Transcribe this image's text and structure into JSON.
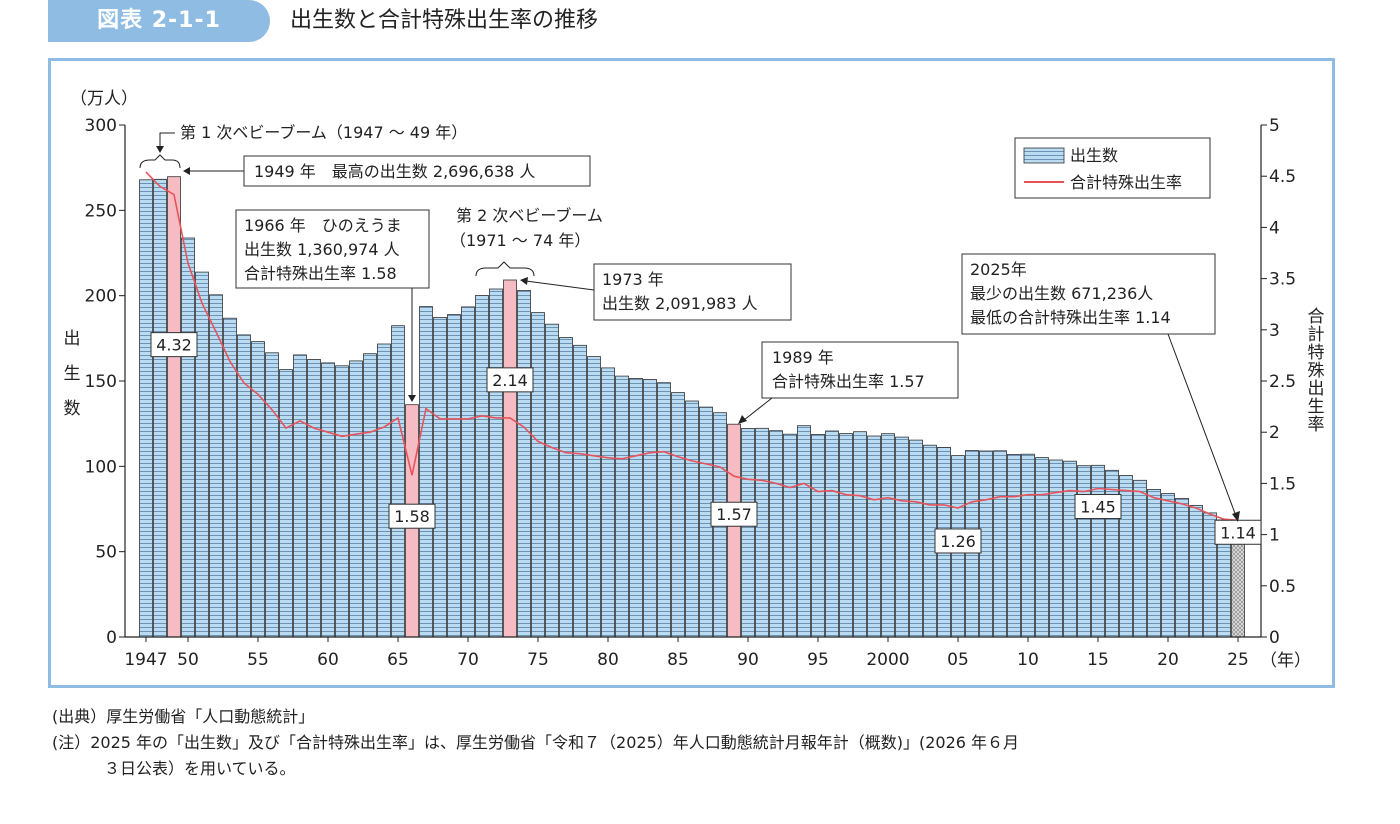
{
  "header": {
    "badge": "図表 2-1-1",
    "title": "出生数と合計特殊出生率の推移"
  },
  "notes": {
    "source": "(出典）厚生労働省「人口動態統計」",
    "note_line1": "(注）2025 年の「出生数」及び「合計特殊出生率」は、厚生労働省「令和７（2025）年人口動態統計月報年計（概数)」(2026 年６月",
    "note_line2": "３日公表）を用いている。"
  },
  "colors": {
    "bar_fill": "#b9dcf2",
    "bar_stripe": "#5a7fa3",
    "highlight_fill": "#f6bcc3",
    "line": "#e8535b",
    "frame": "#8fbce3",
    "estimate_fill": "#c8c8c8"
  },
  "chart_data": {
    "type": "bar",
    "left_axis": {
      "unit": "（万人）",
      "label_chars": [
        "出",
        "生",
        "数"
      ],
      "ylim": [
        0,
        300
      ],
      "ticks": [
        0,
        50,
        100,
        150,
        200,
        250,
        300
      ]
    },
    "right_axis": {
      "label_chars": [
        "合",
        "計",
        "特",
        "殊",
        "出",
        "生",
        "率"
      ],
      "ylim": [
        0,
        5
      ],
      "ticks": [
        "0",
        "0.5",
        "1",
        "1.5",
        "2",
        "2.5",
        "3",
        "3.5",
        "4",
        "4.5",
        "5"
      ]
    },
    "x_axis": {
      "unit": "（年）",
      "tick_labels": [
        {
          "year": 1947,
          "label": "1947"
        },
        {
          "year": 1950,
          "label": "50"
        },
        {
          "year": 1955,
          "label": "55"
        },
        {
          "year": 1960,
          "label": "60"
        },
        {
          "year": 1965,
          "label": "65"
        },
        {
          "year": 1970,
          "label": "70"
        },
        {
          "year": 1975,
          "label": "75"
        },
        {
          "year": 1980,
          "label": "80"
        },
        {
          "year": 1985,
          "label": "85"
        },
        {
          "year": 1990,
          "label": "90"
        },
        {
          "year": 1995,
          "label": "95"
        },
        {
          "year": 2000,
          "label": "2000"
        },
        {
          "year": 2005,
          "label": "05"
        },
        {
          "year": 2010,
          "label": "10"
        },
        {
          "year": 2015,
          "label": "15"
        },
        {
          "year": 2020,
          "label": "20"
        },
        {
          "year": 2025,
          "label": "25"
        }
      ]
    },
    "legend": {
      "position": "top-right",
      "bar_label": "出生数",
      "line_label": "合計特殊出生率"
    },
    "years": [
      1947,
      1948,
      1949,
      1950,
      1951,
      1952,
      1953,
      1954,
      1955,
      1956,
      1957,
      1958,
      1959,
      1960,
      1961,
      1962,
      1963,
      1964,
      1965,
      1966,
      1967,
      1968,
      1969,
      1970,
      1971,
      1972,
      1973,
      1974,
      1975,
      1976,
      1977,
      1978,
      1979,
      1980,
      1981,
      1982,
      1983,
      1984,
      1985,
      1986,
      1987,
      1988,
      1989,
      1990,
      1991,
      1992,
      1993,
      1994,
      1995,
      1996,
      1997,
      1998,
      1999,
      2000,
      2001,
      2002,
      2003,
      2004,
      2005,
      2006,
      2007,
      2008,
      2009,
      2010,
      2011,
      2012,
      2013,
      2014,
      2015,
      2016,
      2017,
      2018,
      2019,
      2020,
      2021,
      2022,
      2023,
      2024,
      2025
    ],
    "series": [
      {
        "name": "出生数",
        "unit": "万人",
        "values": [
          267.9,
          268.2,
          269.7,
          233.8,
          213.8,
          200.5,
          186.8,
          177.0,
          173.1,
          166.5,
          156.7,
          165.3,
          162.6,
          160.6,
          158.9,
          161.8,
          166.0,
          171.7,
          182.4,
          136.1,
          193.6,
          187.2,
          188.9,
          193.4,
          200.1,
          203.9,
          209.2,
          203.0,
          190.1,
          183.3,
          175.5,
          170.9,
          164.3,
          157.7,
          152.9,
          151.5,
          150.9,
          149.0,
          143.2,
          138.3,
          134.7,
          131.4,
          124.7,
          122.2,
          122.3,
          120.9,
          118.8,
          123.8,
          118.7,
          120.7,
          119.2,
          120.3,
          117.8,
          119.1,
          117.1,
          115.4,
          112.4,
          111.1,
          106.3,
          109.3,
          109.0,
          109.1,
          107.0,
          107.1,
          105.1,
          103.7,
          103.0,
          100.4,
          100.6,
          97.7,
          94.6,
          91.8,
          86.5,
          84.1,
          81.2,
          77.1,
          72.7,
          68.6,
          67.1
        ]
      },
      {
        "name": "合計特殊出生率",
        "values": [
          4.54,
          4.4,
          4.32,
          3.65,
          3.26,
          2.98,
          2.69,
          2.48,
          2.37,
          2.22,
          2.04,
          2.11,
          2.04,
          2.0,
          1.96,
          1.98,
          2.0,
          2.05,
          2.14,
          1.58,
          2.23,
          2.13,
          2.13,
          2.13,
          2.16,
          2.14,
          2.14,
          2.05,
          1.91,
          1.85,
          1.8,
          1.79,
          1.77,
          1.75,
          1.74,
          1.77,
          1.8,
          1.81,
          1.76,
          1.72,
          1.69,
          1.66,
          1.57,
          1.54,
          1.53,
          1.5,
          1.46,
          1.5,
          1.42,
          1.43,
          1.39,
          1.38,
          1.34,
          1.36,
          1.33,
          1.32,
          1.29,
          1.29,
          1.26,
          1.32,
          1.34,
          1.37,
          1.37,
          1.39,
          1.39,
          1.41,
          1.43,
          1.42,
          1.45,
          1.44,
          1.43,
          1.42,
          1.36,
          1.33,
          1.3,
          1.26,
          1.2,
          1.15,
          1.14
        ]
      }
    ],
    "highlight_years": [
      1949,
      1966,
      1973,
      1989
    ],
    "estimate_years": [
      2025
    ],
    "value_labels": [
      {
        "year": 1949,
        "text": "4.32"
      },
      {
        "year": 1966,
        "text": "1.58"
      },
      {
        "year": 1973,
        "text": "2.14"
      },
      {
        "year": 1989,
        "text": "1.57"
      },
      {
        "year": 2005,
        "text": "1.26"
      },
      {
        "year": 2015,
        "text": "1.45"
      },
      {
        "year": 2025,
        "text": "1.14"
      }
    ],
    "annotations": {
      "boom1": "第 1 次ベビーブーム（1947 ～ 49 年）",
      "max_births": "1949 年　最高の出生数 2,696,638 人",
      "hinoe_1": "1966 年　ひのえうま",
      "hinoe_2": "出生数 1,360,974 人",
      "hinoe_3": "合計特殊出生率 1.58",
      "boom2_1": "第 2 次ベビーブーム",
      "boom2_2": "（1971 ～ 74 年）",
      "y1973_1": "1973 年",
      "y1973_2": "出生数 2,091,983 人",
      "y1989_1": "1989 年",
      "y1989_2": "合計特殊出生率 1.57",
      "y2025_1": "2025年",
      "y2025_2": "最少の出生数 671,236人",
      "y2025_3": "最低の合計特殊出生率 1.14"
    }
  }
}
